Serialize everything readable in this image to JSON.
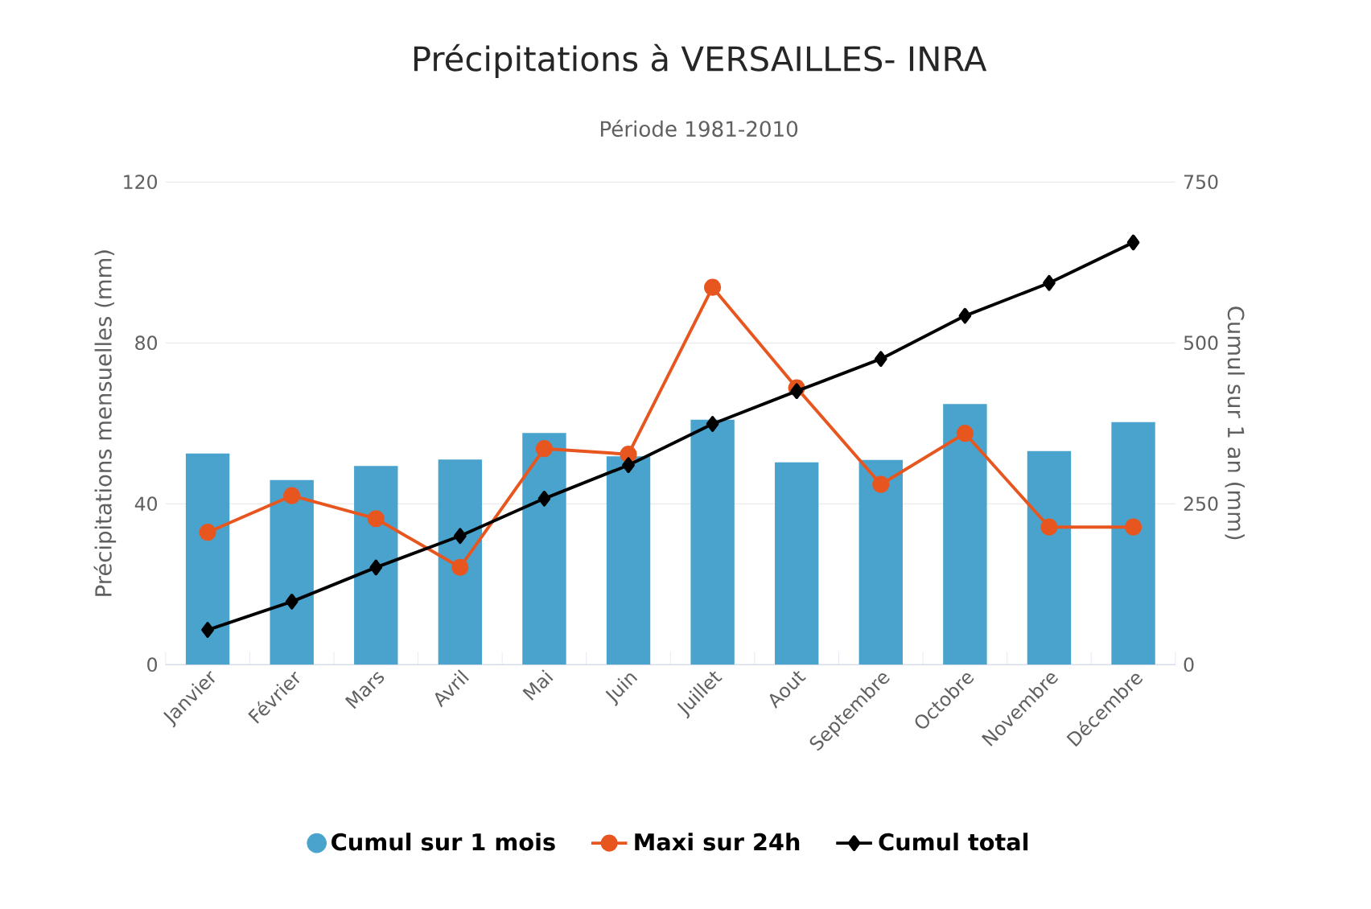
{
  "chart_data": {
    "type": "bar",
    "title": "Précipitations à VERSAILLES- INRA",
    "subtitle": "Période 1981-2010",
    "ylabel": "Précipitations mensuelles (mm)",
    "y2label": "Cumul sur 1 an (mm)",
    "categories": [
      "Janvier",
      "Février",
      "Mars",
      "Avril",
      "Mai",
      "Juin",
      "Juillet",
      "Aout",
      "Septembre",
      "Octobre",
      "Novembre",
      "Décembre"
    ],
    "series": [
      {
        "name": "Cumul sur 1 mois",
        "color": "#4aa3cc",
        "values": [
          52.5,
          45.9,
          49.4,
          51.0,
          57.6,
          51.8,
          60.9,
          50.3,
          50.9,
          64.8,
          53.1,
          60.3
        ]
      },
      {
        "name": "Maxi sur 24h",
        "type": "line",
        "color": "#e8561f",
        "marker": "circle",
        "values": [
          32.9,
          42.0,
          36.3,
          24.2,
          53.7,
          52.3,
          93.8,
          68.8,
          44.8,
          57.5,
          34.2,
          34.2
        ]
      },
      {
        "name": "Cumul total",
        "type": "line",
        "color": "#000000",
        "marker": "diamond",
        "axis": "y2",
        "values": [
          54,
          98,
          151,
          200,
          258,
          310,
          374,
          425,
          475,
          542,
          593,
          656
        ]
      }
    ],
    "ylim": [
      0,
      120
    ],
    "yticks": [
      0,
      40,
      80,
      120
    ],
    "y2lim": [
      0,
      750
    ],
    "y2ticks": [
      0,
      250,
      500,
      750
    ],
    "grid": "y",
    "legend": "bottom"
  }
}
